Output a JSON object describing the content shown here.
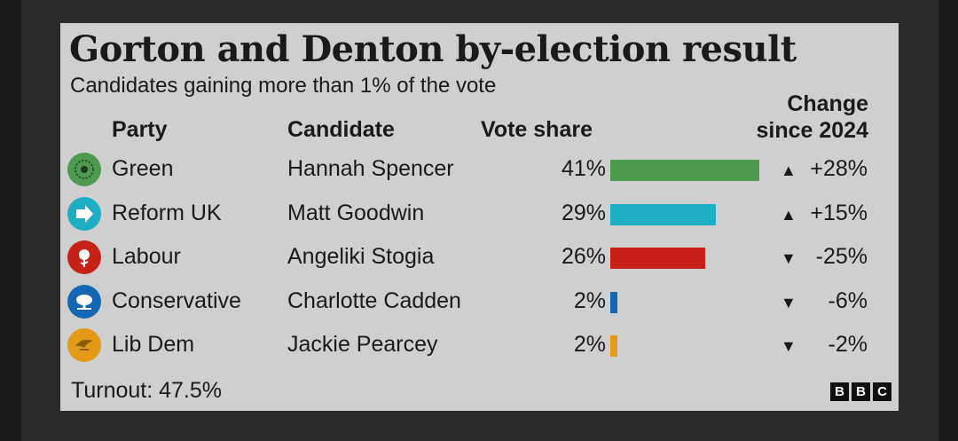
{
  "chart_data": {
    "type": "bar",
    "title": "Gorton and Denton by-election result",
    "subtitle": "Candidates gaining more than 1% of the vote",
    "headers": {
      "party": "Party",
      "candidate": "Candidate",
      "vote_share": "Vote share",
      "change_line1": "Change",
      "change_line2": "since 2024"
    },
    "rows": [
      {
        "party": "Green",
        "candidate": "Hannah Spencer",
        "value": 41,
        "value_label": "41%",
        "change": 28,
        "change_label": "+28%",
        "direction": "up",
        "color": "#4e9a4e",
        "logo": "green-party-logo-icon"
      },
      {
        "party": "Reform UK",
        "candidate": "Matt Goodwin",
        "value": 29,
        "value_label": "29%",
        "change": 15,
        "change_label": "+15%",
        "direction": "up",
        "color": "#1eaec3",
        "logo": "reform-uk-arrow-logo-icon"
      },
      {
        "party": "Labour",
        "candidate": "Angeliki Stogia",
        "value": 26,
        "value_label": "26%",
        "change": -25,
        "change_label": "-25%",
        "direction": "down",
        "color": "#c62219",
        "logo": "labour-rose-logo-icon"
      },
      {
        "party": "Conservative",
        "candidate": "Charlotte Cadden",
        "value": 2,
        "value_label": "2%",
        "change": -6,
        "change_label": "-6%",
        "direction": "down",
        "color": "#1467b3",
        "logo": "conservative-tree-logo-icon"
      },
      {
        "party": "Lib Dem",
        "candidate": "Jackie Pearcey",
        "value": 2,
        "value_label": "2%",
        "change": -2,
        "change_label": "-2%",
        "direction": "down",
        "color": "#e39b17",
        "logo": "lib-dem-bird-logo-icon"
      }
    ],
    "xlim": [
      0,
      41
    ],
    "turnout": "Turnout: 47.5%",
    "brand": [
      "B",
      "B",
      "C"
    ]
  }
}
